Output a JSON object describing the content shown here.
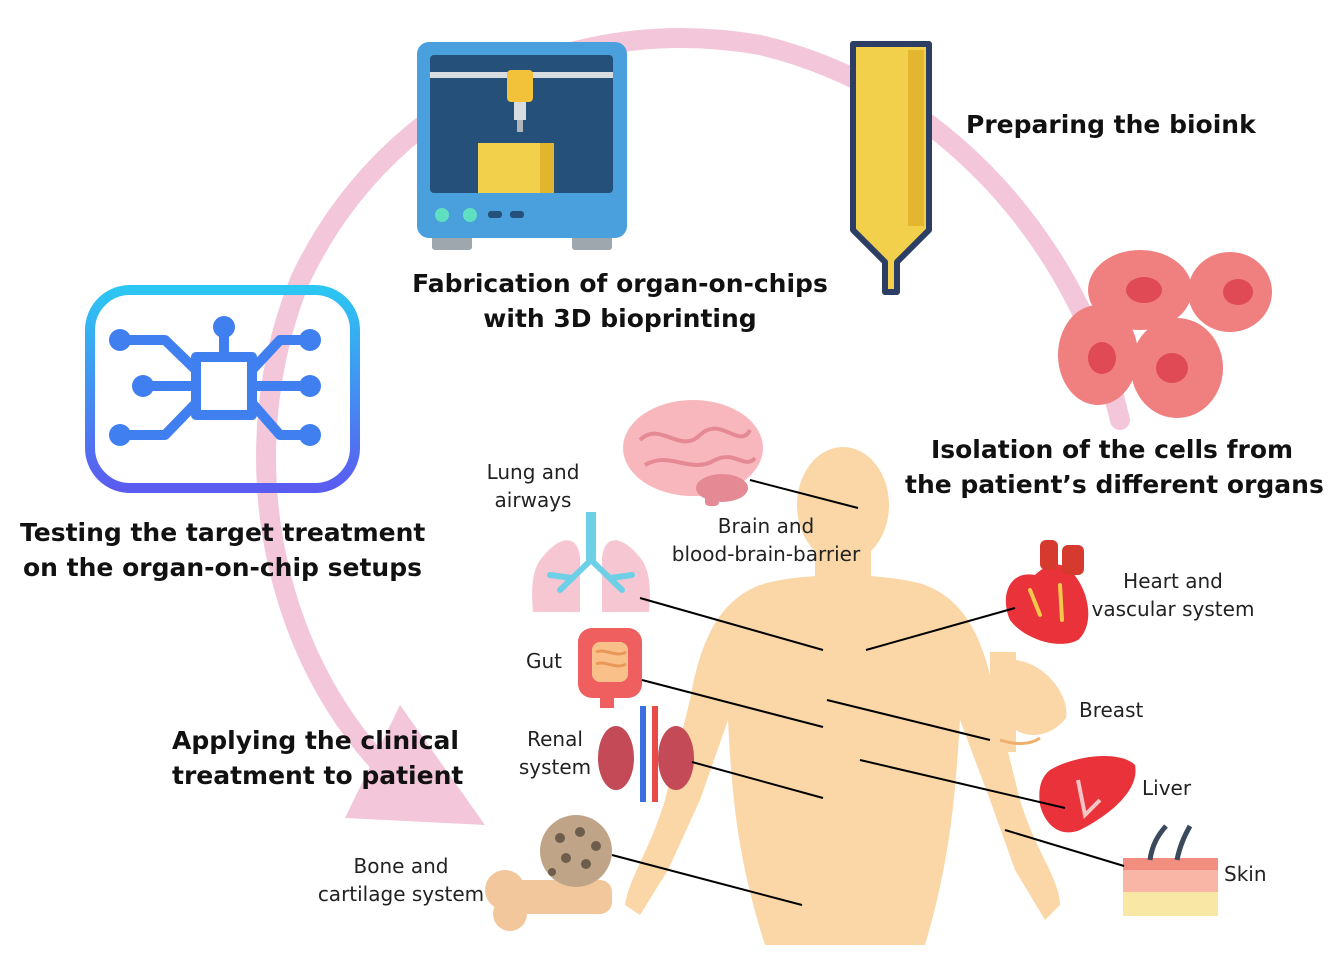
{
  "steps": {
    "fabrication": [
      "Fabrication of organ-on-chips",
      "with 3D bioprinting"
    ],
    "bioink": [
      "Preparing the bioink"
    ],
    "isolation": [
      "Isolation of the cells from",
      "the patient’s different organs"
    ],
    "testing": [
      "Testing the target treatment",
      "on the organ-on-chip setups"
    ],
    "applying": [
      "Applying the clinical",
      "treatment to patient"
    ]
  },
  "organs": {
    "lung": [
      "Lung and",
      "airways"
    ],
    "brain": [
      "Brain and",
      "blood-brain-barrier"
    ],
    "heart": [
      "Heart and",
      "vascular system"
    ],
    "gut": [
      "Gut"
    ],
    "breast": [
      "Breast"
    ],
    "renal": [
      "Renal",
      "system"
    ],
    "liver": [
      "Liver"
    ],
    "bone": [
      "Bone and",
      "cartilage system"
    ],
    "skin": [
      "Skin"
    ]
  },
  "colors": {
    "cycle_arrow": "#f3c6da",
    "body": "#fbd7a8",
    "printer": "#4aa0dc",
    "printer_screen": "#245079",
    "bioink": "#f3d04c",
    "cells": "#f08080",
    "chip": "#3f7ff0",
    "organ_red": "#e14b4b"
  }
}
